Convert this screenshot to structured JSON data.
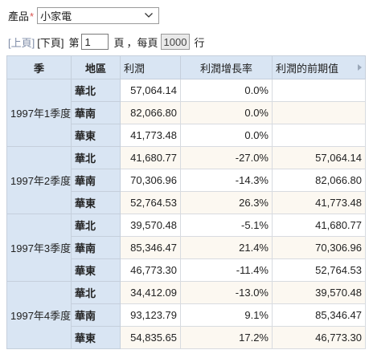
{
  "filter": {
    "label": "產品",
    "required_mark": "*",
    "selected": "小家電"
  },
  "pager": {
    "prev_label": "[上頁]",
    "next_label": "[下頁]",
    "page_prefix": "第",
    "page_value": "1",
    "page_suffix": "頁",
    "comma": "，",
    "per_page_label": "每頁",
    "per_page_value": "1000",
    "rows_suffix": "行"
  },
  "table": {
    "headers": {
      "quarter": "季",
      "region": "地區",
      "profit": "利潤",
      "growth": "利潤增長率",
      "prev": "利潤的前期值"
    },
    "groups": [
      {
        "quarter": "1997年1季度",
        "rows": [
          {
            "region": "華北",
            "profit": "57,064.14",
            "growth": "0.0%",
            "prev": ""
          },
          {
            "region": "華南",
            "profit": "82,066.80",
            "growth": "0.0%",
            "prev": ""
          },
          {
            "region": "華東",
            "profit": "41,773.48",
            "growth": "0.0%",
            "prev": ""
          }
        ]
      },
      {
        "quarter": "1997年2季度",
        "rows": [
          {
            "region": "華北",
            "profit": "41,680.77",
            "growth": "-27.0%",
            "prev": "57,064.14"
          },
          {
            "region": "華南",
            "profit": "70,306.96",
            "growth": "-14.3%",
            "prev": "82,066.80"
          },
          {
            "region": "華東",
            "profit": "52,764.53",
            "growth": "26.3%",
            "prev": "41,773.48"
          }
        ]
      },
      {
        "quarter": "1997年3季度",
        "rows": [
          {
            "region": "華北",
            "profit": "39,570.48",
            "growth": "-5.1%",
            "prev": "41,680.77"
          },
          {
            "region": "華南",
            "profit": "85,346.47",
            "growth": "21.4%",
            "prev": "70,306.96"
          },
          {
            "region": "華東",
            "profit": "46,773.30",
            "growth": "-11.4%",
            "prev": "52,764.53"
          }
        ]
      },
      {
        "quarter": "1997年4季度",
        "rows": [
          {
            "region": "華北",
            "profit": "34,412.09",
            "growth": "-13.0%",
            "prev": "39,570.48"
          },
          {
            "region": "華南",
            "profit": "93,123.79",
            "growth": "9.1%",
            "prev": "85,346.47"
          },
          {
            "region": "華東",
            "profit": "54,835.65",
            "growth": "17.2%",
            "prev": "46,773.30"
          }
        ]
      }
    ]
  }
}
